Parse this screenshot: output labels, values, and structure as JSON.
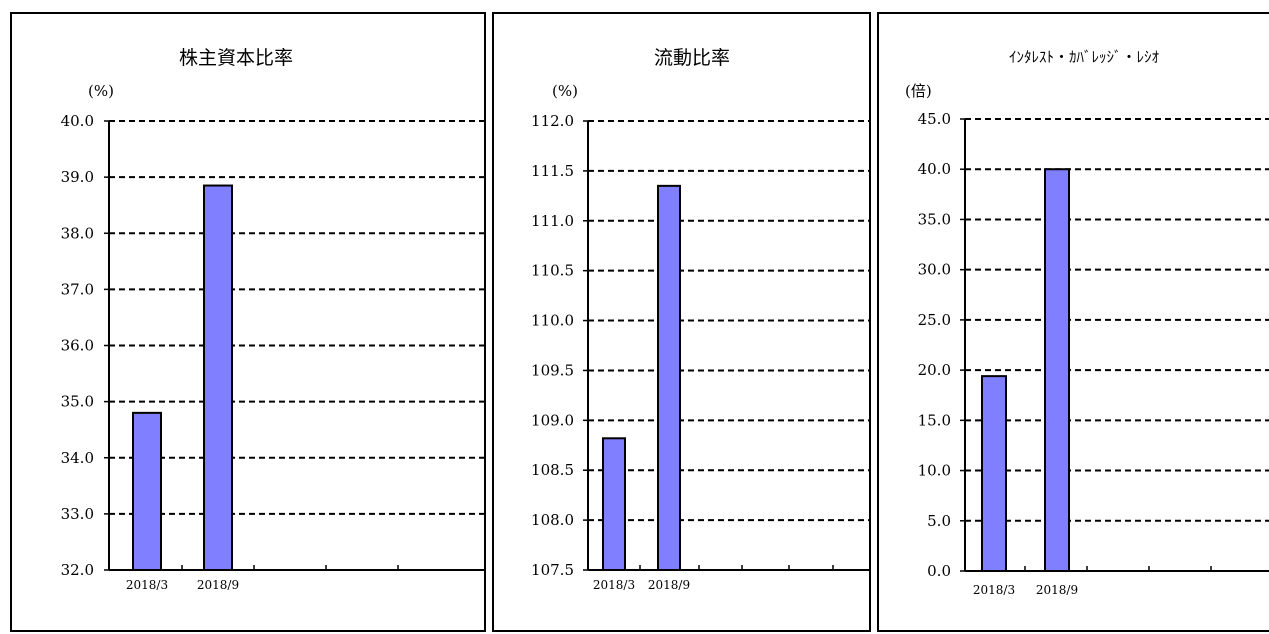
{
  "chart_data": [
    {
      "type": "bar",
      "title": "株主資本比率",
      "unit": "(%)",
      "categories": [
        "2018/3",
        "2018/9"
      ],
      "values": [
        34.8,
        38.85
      ],
      "ylim": [
        32.0,
        40.0
      ],
      "yticks": [
        "32.0",
        "33.0",
        "34.0",
        "35.0",
        "36.0",
        "37.0",
        "38.0",
        "39.0",
        "40.0"
      ],
      "grid": true,
      "bar_color": "#7f7fff"
    },
    {
      "type": "bar",
      "title": "流動比率",
      "unit": "(%)",
      "categories": [
        "2018/3",
        "2018/9"
      ],
      "values": [
        108.82,
        111.35
      ],
      "ylim": [
        107.5,
        112.0
      ],
      "yticks": [
        "107.5",
        "108.0",
        "108.5",
        "109.0",
        "109.5",
        "110.0",
        "110.5",
        "111.0",
        "111.5",
        "112.0"
      ],
      "grid": true,
      "bar_color": "#7f7fff"
    },
    {
      "type": "bar",
      "title": "ｲﾝﾀﾚｽﾄ・ｶﾊﾞﾚｯｼﾞ・ﾚｼｵ",
      "unit": "(倍)",
      "categories": [
        "2018/3",
        "2018/9"
      ],
      "values": [
        19.4,
        40.0
      ],
      "ylim": [
        0.0,
        45.0
      ],
      "yticks": [
        "0.0",
        "5.0",
        "10.0",
        "15.0",
        "20.0",
        "25.0",
        "30.0",
        "35.0",
        "40.0",
        "45.0"
      ],
      "grid": true,
      "bar_color": "#7f7fff"
    }
  ]
}
